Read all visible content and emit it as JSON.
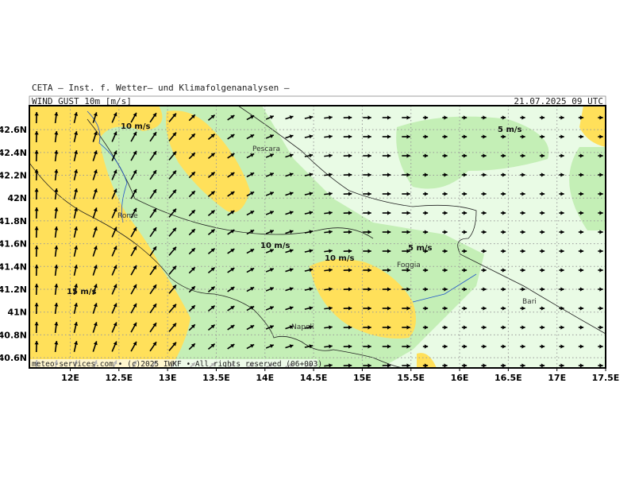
{
  "header": {
    "institute": "CETA – Inst. f. Wetter– und Klimafolgenanalysen –",
    "field": "WIND GUST 10m [m/s]",
    "time": "21.07.2025 09 UTC"
  },
  "footer": "meteo-services.com • (c)2025 IWKF • All rights reserved (06+003)",
  "x_axis": {
    "lim": [
      11.58,
      17.5
    ],
    "ticks": [
      {
        "value": 12,
        "label": "12E"
      },
      {
        "value": 12.5,
        "label": "12.5E"
      },
      {
        "value": 13,
        "label": "13E"
      },
      {
        "value": 13.5,
        "label": "13.5E"
      },
      {
        "value": 14,
        "label": "14E"
      },
      {
        "value": 14.5,
        "label": "14.5E"
      },
      {
        "value": 15,
        "label": "15E"
      },
      {
        "value": 15.5,
        "label": "15.5E"
      },
      {
        "value": 16,
        "label": "16E"
      },
      {
        "value": 16.5,
        "label": "16.5E"
      },
      {
        "value": 17,
        "label": "17E"
      },
      {
        "value": 17.5,
        "label": "17.5E"
      }
    ]
  },
  "y_axis": {
    "lim": [
      40.51,
      42.81
    ],
    "ticks": [
      {
        "value": 40.6,
        "label": "40.6N"
      },
      {
        "value": 40.8,
        "label": "40.8N"
      },
      {
        "value": 41,
        "label": "41N"
      },
      {
        "value": 41.2,
        "label": "41.2N"
      },
      {
        "value": 41.4,
        "label": "41.4N"
      },
      {
        "value": 41.6,
        "label": "41.6N"
      },
      {
        "value": 41.8,
        "label": "41.8N"
      },
      {
        "value": 42,
        "label": "42N"
      },
      {
        "value": 42.2,
        "label": "42.2N"
      },
      {
        "value": 42.4,
        "label": "42.4N"
      },
      {
        "value": 42.6,
        "label": "42.6N"
      }
    ]
  },
  "places": [
    "Pescara",
    "Rome",
    "Foggia",
    "Napoli",
    "Bari"
  ],
  "contour_labels": [
    "10 m/s",
    "5 m/s",
    "10 m/s",
    "10 m/s",
    "5 m/s",
    "15 m/s"
  ]
}
